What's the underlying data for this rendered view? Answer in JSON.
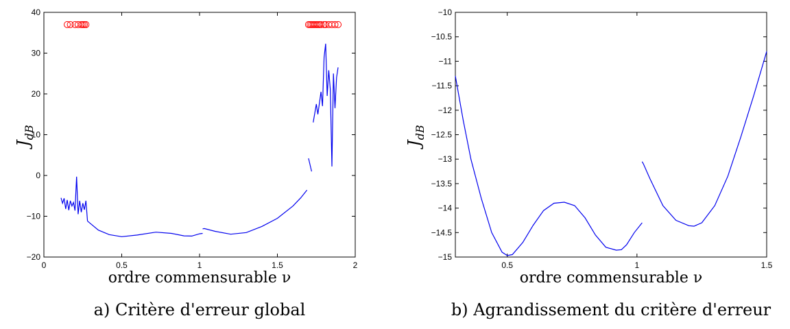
{
  "chart_data": [
    {
      "type": "line",
      "caption": "a) Critère d'erreur global",
      "xlabel": "ordre commensurable ν",
      "ylabel": "J",
      "ylabel_sub": "dB",
      "xlim": [
        0,
        2
      ],
      "ylim": [
        -20,
        40
      ],
      "xticks": [
        "0",
        "0.5",
        "1",
        "1.5",
        "2"
      ],
      "xtick_values": [
        0,
        0.5,
        1,
        1.5,
        2
      ],
      "yticks": [
        "-20",
        "-10",
        "0",
        "10",
        "20",
        "30",
        "40"
      ],
      "ytick_values": [
        -20,
        -10,
        0,
        10,
        20,
        30,
        40
      ],
      "grid": false,
      "series_color": "#0000ee",
      "marker_color": "#ff0000",
      "series": [
        {
          "x": [
            0.11,
            0.12,
            0.13,
            0.14,
            0.15,
            0.16,
            0.17,
            0.18,
            0.19,
            0.2,
            0.21,
            0.22,
            0.23,
            0.24,
            0.25,
            0.26,
            0.27,
            0.28
          ],
          "y": [
            -5.5,
            -6.8,
            -5.6,
            -8.2,
            -6.0,
            -8.5,
            -6.2,
            -7.5,
            -6.6,
            -8.6,
            -0.3,
            -9.5,
            -6.2,
            -9.0,
            -6.8,
            -8.4,
            -6.2,
            -11.2
          ]
        },
        {
          "x": [
            0.28,
            0.35,
            0.42,
            0.5,
            0.6,
            0.72,
            0.82,
            0.9,
            0.95,
            1.0,
            1.02
          ],
          "y": [
            -11.2,
            -13.4,
            -14.5,
            -15.0,
            -14.6,
            -13.9,
            -14.2,
            -14.8,
            -14.85,
            -14.3,
            -14.2
          ]
        },
        {
          "x": [
            1.02,
            1.03,
            1.1,
            1.2,
            1.3,
            1.4,
            1.5,
            1.6,
            1.65,
            1.69
          ],
          "y": [
            -13.1,
            -13.0,
            -13.7,
            -14.4,
            -14.0,
            -12.5,
            -10.5,
            -7.5,
            -5.5,
            -3.6
          ]
        },
        {
          "x": [
            1.7,
            1.72
          ],
          "y": [
            4.2,
            1.0
          ]
        },
        {
          "x": [
            1.73,
            1.75,
            1.76,
            1.78,
            1.79,
            1.8,
            1.81,
            1.82,
            1.83,
            1.84,
            1.85,
            1.86,
            1.87,
            1.88,
            1.89
          ],
          "y": [
            13.0,
            17.5,
            15.0,
            20.5,
            17.0,
            29.0,
            32.3,
            19.5,
            25.8,
            21.0,
            2.2,
            25.0,
            16.5,
            24.0,
            26.5
          ]
        }
      ],
      "markers_x": [
        0.15,
        0.17,
        0.2,
        0.22,
        0.24,
        0.25,
        0.26,
        0.27,
        1.7,
        1.71,
        1.72,
        1.73,
        1.74,
        1.75,
        1.76,
        1.77,
        1.78,
        1.8,
        1.81,
        1.83,
        1.85,
        1.87,
        1.89
      ],
      "markers_y": 37
    },
    {
      "type": "line",
      "caption": "b) Agrandissement du critère d'erreur",
      "xlabel": "ordre commensurable ν",
      "ylabel": "J",
      "ylabel_sub": "dB",
      "xlim": [
        0.3,
        1.5
      ],
      "ylim": [
        -15,
        -10
      ],
      "xticks": [
        "0.5",
        "1",
        "1.5"
      ],
      "xtick_values": [
        0.5,
        1,
        1.5
      ],
      "yticks": [
        "-15",
        "-14.5",
        "-14",
        "-13.5",
        "-13",
        "-12.5",
        "-12",
        "-11.5",
        "-11",
        "-10.5",
        "-10"
      ],
      "ytick_values": [
        -15,
        -14.5,
        -14,
        -13.5,
        -13,
        -12.5,
        -12,
        -11.5,
        -11,
        -10.5,
        -10
      ],
      "grid": false,
      "series_color": "#0000ee",
      "series": [
        {
          "x": [
            0.3,
            0.33,
            0.36,
            0.4,
            0.44,
            0.48,
            0.5,
            0.52,
            0.56,
            0.6,
            0.64,
            0.68,
            0.72,
            0.76,
            0.8,
            0.84,
            0.88,
            0.92,
            0.94,
            0.96,
            0.99,
            1.02
          ],
          "y": [
            -11.3,
            -12.2,
            -13.0,
            -13.8,
            -14.5,
            -14.9,
            -14.97,
            -14.95,
            -14.7,
            -14.35,
            -14.05,
            -13.9,
            -13.88,
            -13.95,
            -14.2,
            -14.55,
            -14.8,
            -14.86,
            -14.85,
            -14.75,
            -14.5,
            -14.3
          ]
        },
        {
          "x": [
            1.02,
            1.025,
            1.05,
            1.1,
            1.15,
            1.2,
            1.22,
            1.25,
            1.3,
            1.35,
            1.4,
            1.45,
            1.5
          ],
          "y": [
            -13.05,
            -13.1,
            -13.4,
            -13.95,
            -14.25,
            -14.36,
            -14.37,
            -14.3,
            -13.95,
            -13.35,
            -12.55,
            -11.7,
            -10.8
          ]
        }
      ]
    }
  ]
}
